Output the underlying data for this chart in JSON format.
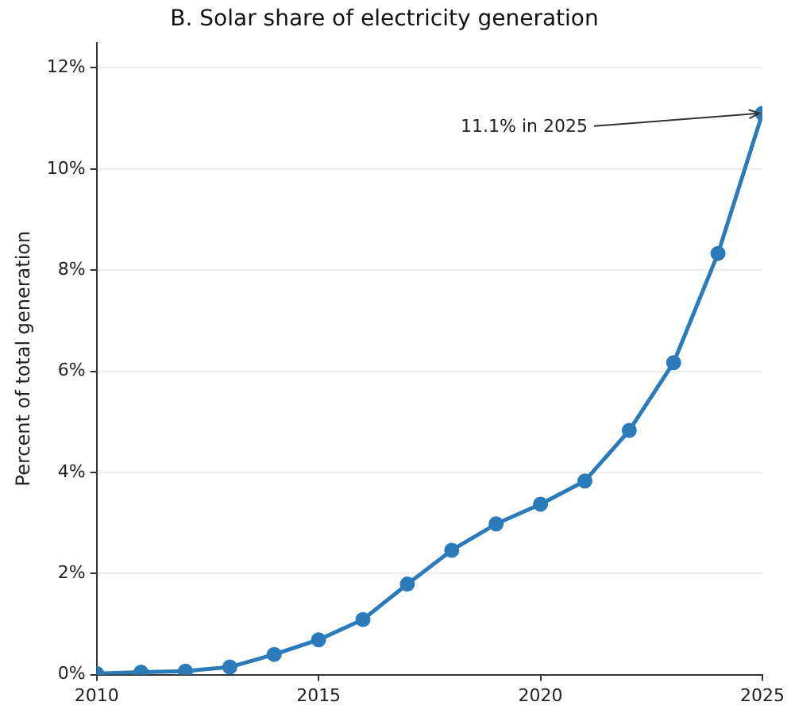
{
  "chart_data": {
    "type": "line",
    "title": "B. Solar share of electricity generation",
    "ylabel": "Percent of total generation",
    "x": [
      2010,
      2011,
      2012,
      2013,
      2014,
      2015,
      2016,
      2017,
      2018,
      2019,
      2020,
      2021,
      2022,
      2023,
      2024,
      2025
    ],
    "series": [
      {
        "color": "#2b7bba",
        "values": [
          0.02,
          0.05,
          0.07,
          0.15,
          0.4,
          0.69,
          1.09,
          1.79,
          2.46,
          2.98,
          3.37,
          3.83,
          4.83,
          6.17,
          8.33,
          11.1
        ]
      }
    ],
    "xlim": [
      2010,
      2025
    ],
    "xticks": [
      2010,
      2015,
      2020,
      2025
    ],
    "ylim": [
      0,
      12.5
    ],
    "yticks": [
      {
        "value": 0,
        "label": "0%"
      },
      {
        "value": 2,
        "label": "2%"
      },
      {
        "value": 4,
        "label": "4%"
      },
      {
        "value": 6,
        "label": "6%"
      },
      {
        "value": 8,
        "label": "8%"
      },
      {
        "value": 10,
        "label": "10%"
      },
      {
        "value": 12,
        "label": "12%"
      }
    ],
    "grid": "y",
    "marker": "circle",
    "line_style": "solid",
    "legend": false,
    "annotations": [
      {
        "text": "11.1% in 2025",
        "x": 2025,
        "y": 11.1
      }
    ]
  }
}
